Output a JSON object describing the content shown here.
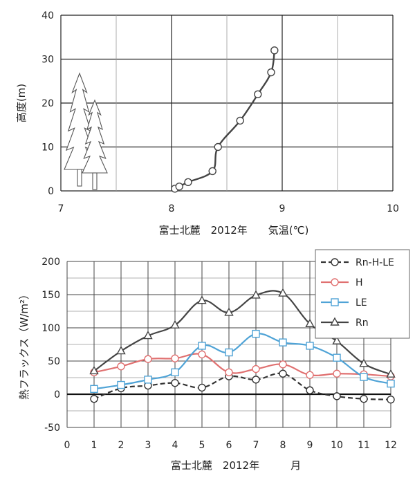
{
  "chart_data": [
    {
      "type": "line",
      "xlabel": "富士北麓　2012年　　気温(℃)",
      "ylabel": "高度(m)",
      "xlim": [
        7,
        10
      ],
      "ylim": [
        0,
        40
      ],
      "xticks": [
        7,
        8,
        9,
        10
      ],
      "yticks": [
        0,
        10,
        20,
        30,
        40
      ],
      "grid": true,
      "legend": "none",
      "series": [
        {
          "color": "#444444",
          "marker": "circle",
          "points": [
            {
              "x": 8.03,
              "y": 0.5
            },
            {
              "x": 8.07,
              "y": 1.0
            },
            {
              "x": 8.15,
              "y": 2.0
            },
            {
              "x": 8.37,
              "y": 4.5
            },
            {
              "x": 8.42,
              "y": 10.0
            },
            {
              "x": 8.62,
              "y": 16.0
            },
            {
              "x": 8.78,
              "y": 22.0
            },
            {
              "x": 8.9,
              "y": 27.0
            },
            {
              "x": 8.93,
              "y": 32.0
            }
          ]
        }
      ],
      "decoration": "tree-icons"
    },
    {
      "type": "line",
      "xlabel": "富士北麓　2012年　　　月",
      "ylabel": "熱フラックス（W/m²）",
      "x": [
        1,
        2,
        3,
        4,
        5,
        6,
        7,
        8,
        9,
        10,
        11,
        12
      ],
      "xlim": [
        0,
        12
      ],
      "ylim": [
        -50,
        200
      ],
      "xticks": [
        0,
        1,
        2,
        3,
        4,
        5,
        6,
        7,
        8,
        9,
        10,
        11,
        12
      ],
      "yticks": [
        -50,
        0,
        50,
        100,
        150,
        200
      ],
      "grid": true,
      "legend": "top-right",
      "series": [
        {
          "name": "Rn-H-LE",
          "color": "#333333",
          "marker": "circle",
          "dash": true,
          "values": [
            -7,
            9,
            13,
            17,
            10,
            27,
            22,
            31,
            6,
            -3,
            -7,
            -8
          ]
        },
        {
          "name": "H",
          "color": "#e07070",
          "marker": "circle",
          "dash": false,
          "values": [
            33,
            42,
            53,
            54,
            60,
            33,
            38,
            45,
            29,
            31,
            30,
            27
          ]
        },
        {
          "name": "LE",
          "color": "#4fa3d6",
          "marker": "square",
          "dash": false,
          "values": [
            8,
            14,
            22,
            33,
            73,
            63,
            91,
            78,
            73,
            55,
            26,
            16
          ]
        },
        {
          "name": "Rn",
          "color": "#444444",
          "marker": "triangle",
          "dash": false,
          "values": [
            35,
            65,
            88,
            104,
            141,
            123,
            149,
            152,
            106,
            80,
            46,
            30
          ]
        }
      ]
    }
  ]
}
